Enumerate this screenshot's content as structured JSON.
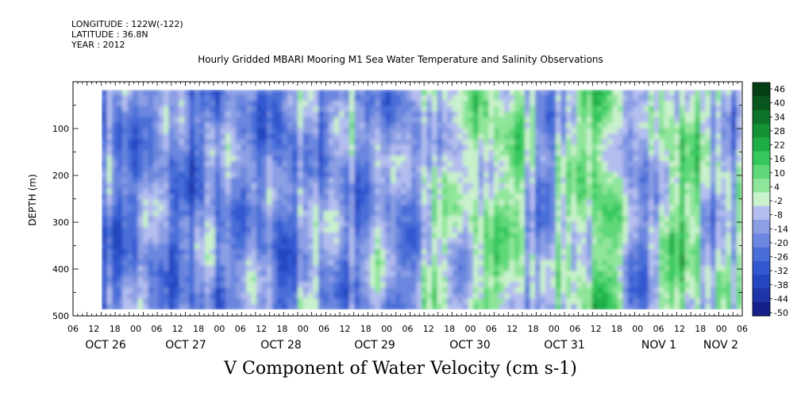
{
  "header": {
    "longitude": "LONGITUDE : 122W(-122)",
    "latitude": "LATITUDE : 36.8N",
    "year": "YEAR : 2012",
    "title": "Hourly Gridded MBARI Mooring M1 Sea Water Temperature and Salinity Observations"
  },
  "chart_data": {
    "type": "heatmap",
    "title": "V Component of Water Velocity (cm s-1)",
    "ylabel": "DEPTH (m)",
    "xlabel": "",
    "y_axis": {
      "range": [
        500,
        0
      ],
      "inverted": true,
      "tick_values": [
        100,
        200,
        300,
        400,
        500
      ],
      "tick_labels": [
        "100",
        "200",
        "300",
        "400",
        "500"
      ]
    },
    "x_axis": {
      "hour_labels": [
        "06",
        "12",
        "18",
        "00",
        "06",
        "12",
        "18",
        "00",
        "06",
        "12",
        "18",
        "00",
        "06",
        "12",
        "18",
        "00",
        "06",
        "12",
        "18",
        "00",
        "06",
        "12",
        "18",
        "00",
        "06",
        "12",
        "18",
        "00",
        "06",
        "12",
        "18",
        "00",
        "06"
      ],
      "day_labels": [
        "OCT 26",
        "OCT 27",
        "OCT 28",
        "OCT 29",
        "OCT 30",
        "OCT 31",
        "NOV  1",
        "NOV  2"
      ]
    },
    "colorbar": {
      "labels": [
        "46",
        "40",
        "34",
        "28",
        "22",
        "16",
        "10",
        "4",
        "-2",
        "-8",
        "-14",
        "-20",
        "-26",
        "-32",
        "-38",
        "-44",
        "-50"
      ],
      "range": [
        -50,
        52
      ]
    },
    "field_description_blocks": [
      {
        "col_start": 0.0,
        "col_end": 0.3,
        "v_mean": -12
      },
      {
        "col_start": 0.3,
        "col_end": 0.5,
        "v_mean": -6
      },
      {
        "col_start": 0.5,
        "col_end": 1.0,
        "v_mean": 6
      }
    ]
  }
}
